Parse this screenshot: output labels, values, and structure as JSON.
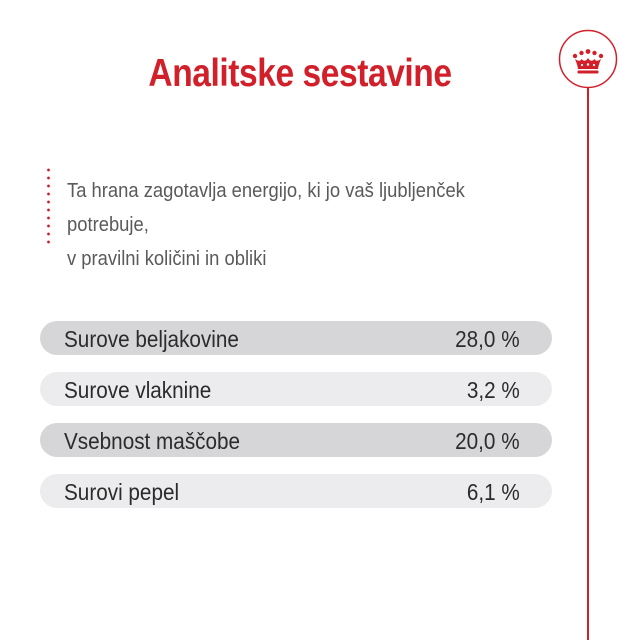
{
  "title": "Analitske sestavine",
  "description": {
    "line1": "Ta hrana zagotavlja energijo, ki jo vaš ljubljenček potrebuje,",
    "line2": "v pravilni količini in obliki"
  },
  "rows": [
    {
      "label": "Surove beljakovine",
      "value": "28,0 %"
    },
    {
      "label": "Surove vlaknine",
      "value": "3,2 %"
    },
    {
      "label": "Vsebnost maščobe",
      "value": "20,0 %"
    },
    {
      "label": "Surovi pepel",
      "value": "6,1 %"
    }
  ],
  "colors": {
    "accent": "#d2202b",
    "row_dark": "#d6d6d8",
    "row_light": "#ececee",
    "text": "#2b2b2b"
  },
  "icons": [
    "crown-icon"
  ]
}
